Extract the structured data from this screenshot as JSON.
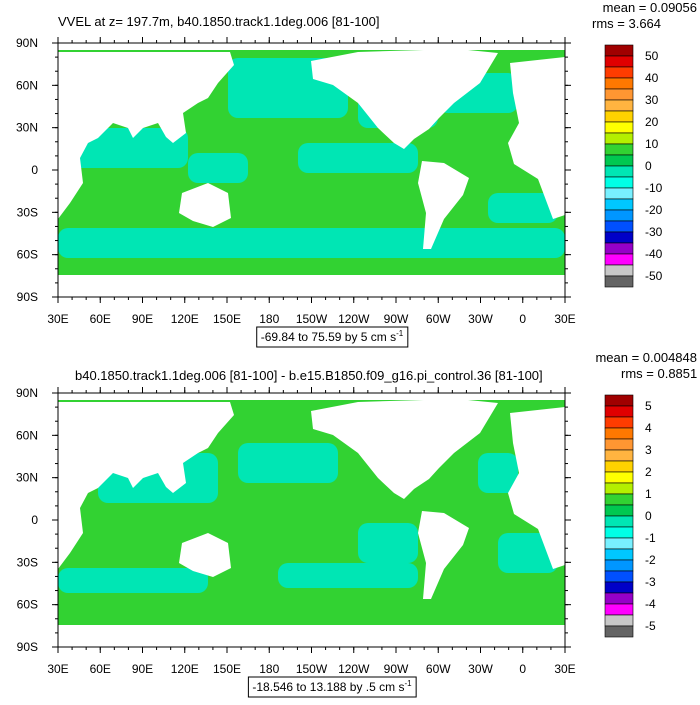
{
  "panels": [
    {
      "title": "VVEL at z= 197.7m, b40.1850.track1.1deg.006 [81-100]",
      "mean": "mean = 0.09056",
      "rms": "rms = 3.664",
      "lat_labels": [
        "90N",
        "60N",
        "30N",
        "0",
        "30S",
        "60S",
        "90S"
      ],
      "lon_labels": [
        "30E",
        "60E",
        "90E",
        "120E",
        "150E",
        "180",
        "150W",
        "120W",
        "90W",
        "60W",
        "30W",
        "0",
        "30E"
      ],
      "colorbar_labels": [
        "50",
        "40",
        "30",
        "20",
        "10",
        "0",
        "-10",
        "-20",
        "-30",
        "-40",
        "-50"
      ],
      "range": "-69.84 to 75.59 by 5 cm s",
      "range_sup": "-1"
    },
    {
      "title": "b40.1850.track1.1deg.006 [81-100] - b.e15.B1850.f09_g16.pi_control.36 [81-100]",
      "mean": "mean = 0.004848",
      "rms": "rms = 0.8851",
      "lat_labels": [
        "90N",
        "60N",
        "30N",
        "0",
        "30S",
        "60S",
        "90S"
      ],
      "lon_labels": [
        "30E",
        "60E",
        "90E",
        "120E",
        "150E",
        "180",
        "150W",
        "120W",
        "90W",
        "60W",
        "30W",
        "0",
        "30E"
      ],
      "colorbar_labels": [
        "5",
        "4",
        "3",
        "2",
        "1",
        "0",
        "-1",
        "-2",
        "-3",
        "-4",
        "-5"
      ],
      "range": "-18.546 to 13.188 by .5 cm s",
      "range_sup": "-1"
    }
  ],
  "colorbar_colors": [
    "#a00000",
    "#e00000",
    "#ff3c00",
    "#ff7800",
    "#ff9632",
    "#ffb440",
    "#ffd200",
    "#ffff00",
    "#b4f000",
    "#32d232",
    "#00c850",
    "#00e6b4",
    "#00ffe6",
    "#78f0ff",
    "#00c8ff",
    "#0096ff",
    "#0050ff",
    "#0000c8",
    "#9600c8",
    "#ff00ff",
    "#c8c8c8",
    "#646464"
  ]
}
